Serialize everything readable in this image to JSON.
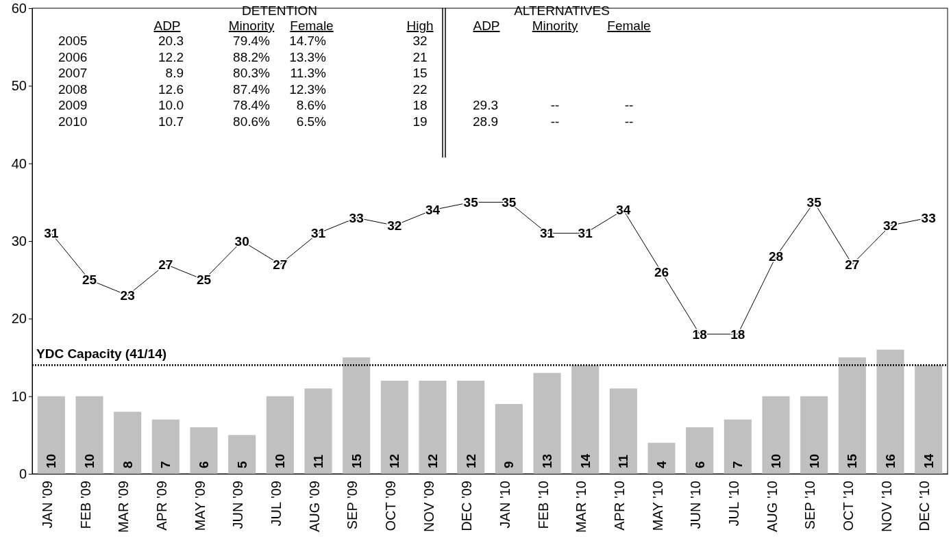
{
  "chart_data": {
    "type": "bar",
    "categories": [
      "JAN '09",
      "FEB '09",
      "MAR '09",
      "APR '09",
      "MAY '09",
      "JUN '09",
      "JUL '09",
      "AUG '09",
      "SEP '09",
      "OCT '09",
      "NOV '09",
      "DEC '09",
      "JAN '10",
      "FEB '10",
      "MAR '10",
      "APR '10",
      "MAY '10",
      "JUN '10",
      "JUL '10",
      "AUG '10",
      "SEP '10",
      "OCT '10",
      "NOV '10",
      "DEC '10"
    ],
    "series": [
      {
        "color": "#c0c0c0",
        "values": [
          10,
          10,
          8,
          7,
          6,
          5,
          10,
          11,
          15,
          12,
          12,
          12,
          9,
          13,
          14,
          11,
          4,
          6,
          7,
          10,
          10,
          15,
          16,
          14
        ]
      },
      {
        "type": "line",
        "color": "#000000",
        "values": [
          31,
          25,
          23,
          27,
          25,
          30,
          27,
          31,
          33,
          32,
          34,
          35,
          35,
          31,
          31,
          34,
          26,
          18,
          18,
          28,
          35,
          27,
          32,
          33
        ]
      }
    ],
    "ylim": [
      0,
      60
    ],
    "yticks": [
      0,
      10,
      20,
      30,
      40,
      50,
      60
    ],
    "grid": false,
    "data_labels": true,
    "marker": "none",
    "ref_lines": [
      {
        "axis": "y",
        "value": 14,
        "label": "YDC Capacity (41/14)",
        "line_style": "dotted",
        "color": "#000000"
      }
    ],
    "annotations": [
      "DETENTION",
      "ALTERNATIVES",
      "ADP",
      "Minority",
      "Female",
      "High",
      "ADP",
      "Minority",
      "Female",
      "2005",
      "20.3",
      "79.4%",
      "14.7%",
      "32",
      "2006",
      "12.2",
      "88.2%",
      "13.3%",
      "21",
      "2007",
      "8.9",
      "80.3%",
      "11.3%",
      "15",
      "2008",
      "12.6",
      "87.4%",
      "12.3%",
      "22",
      "2009",
      "10.0",
      "78.4%",
      "8.6%",
      "18",
      "29.3",
      "--",
      "--",
      "2010",
      "10.7",
      "80.6%",
      "6.5%",
      "19",
      "28.9",
      "--",
      "--"
    ]
  }
}
